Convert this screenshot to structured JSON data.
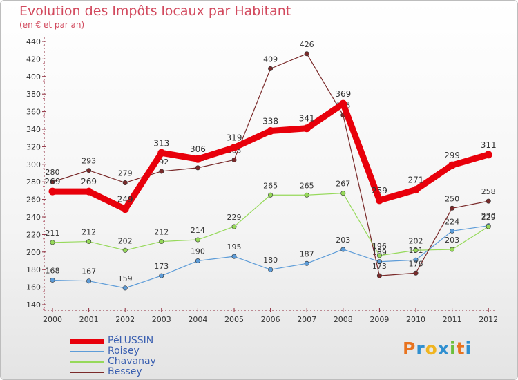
{
  "title": "Evolution des Impôts locaux par Habitant",
  "subtitle": "(en € et par an)",
  "logo": {
    "text": "Proxiti",
    "colors": [
      "#e8731f",
      "#2f8fd0",
      "#f0b521",
      "#2f8fd0",
      "#6cbf3c",
      "#e8731f",
      "#2f8fd0"
    ]
  },
  "chart_data": {
    "type": "line",
    "title": "Evolution des Impôts locaux par Habitant",
    "x": [
      "2000",
      "2001",
      "2002",
      "2003",
      "2004",
      "2005",
      "2006",
      "2007",
      "2008",
      "2009",
      "2010",
      "2011",
      "2012"
    ],
    "ylim": [
      140,
      440
    ],
    "yticks": [
      140,
      160,
      180,
      200,
      220,
      240,
      260,
      280,
      300,
      320,
      340,
      360,
      380,
      400,
      420,
      440
    ],
    "grid": false,
    "legend_position": "bottom-left",
    "series": [
      {
        "name": "PéLUSSIN",
        "color": "#e8000b",
        "values": [
          269,
          269,
          249,
          313,
          306,
          319,
          338,
          341,
          369,
          259,
          271,
          299,
          311
        ],
        "labels": [
          "269",
          "269",
          "249",
          "313",
          "306",
          "319",
          "338",
          "341",
          "369",
          "259",
          "271",
          "299",
          "311"
        ],
        "bold": true
      },
      {
        "name": "Roisey",
        "color": "#5d9cd8",
        "values": [
          168,
          167,
          159,
          173,
          190,
          195,
          180,
          187,
          203,
          189,
          191,
          224,
          230
        ],
        "labels": [
          "168",
          "167",
          "159",
          "173",
          "190",
          "195",
          "180",
          "187",
          "203",
          "189",
          "191",
          "224",
          "230"
        ]
      },
      {
        "name": "Chavanay",
        "color": "#96d95a",
        "values": [
          211,
          212,
          202,
          212,
          214,
          229,
          265,
          265,
          267,
          196,
          202,
          203,
          229
        ],
        "labels": [
          "211",
          "212",
          "202",
          "212",
          "214",
          "229",
          "265",
          "265",
          "267",
          "196",
          "202",
          "203",
          "229"
        ]
      },
      {
        "name": "Bessey",
        "color": "#7a2a2a",
        "values": [
          280,
          293,
          279,
          292,
          296,
          305,
          409,
          426,
          356,
          173,
          176,
          250,
          258
        ],
        "labels": [
          "280",
          "293",
          "279",
          "292",
          "296",
          "305",
          "409",
          "426",
          "356",
          "173",
          "176",
          "250",
          "258"
        ]
      }
    ]
  }
}
